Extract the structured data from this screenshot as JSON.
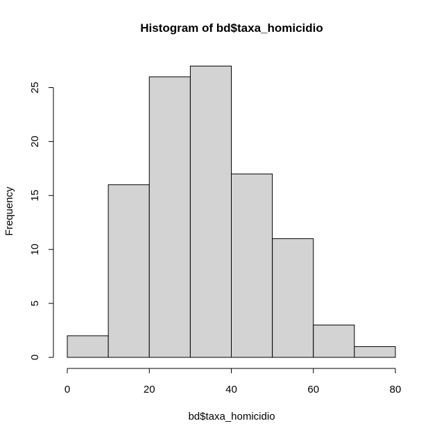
{
  "chart_data": {
    "type": "bar",
    "title": "Histogram of bd$taxa_homicidio",
    "xlabel": "bd$taxa_homicidio",
    "ylabel": "Frequency",
    "bins": [
      {
        "from": 0,
        "to": 10,
        "count": 2
      },
      {
        "from": 10,
        "to": 20,
        "count": 16
      },
      {
        "from": 20,
        "to": 30,
        "count": 26
      },
      {
        "from": 30,
        "to": 40,
        "count": 27
      },
      {
        "from": 40,
        "to": 50,
        "count": 17
      },
      {
        "from": 50,
        "to": 60,
        "count": 11
      },
      {
        "from": 60,
        "to": 70,
        "count": 3
      },
      {
        "from": 70,
        "to": 80,
        "count": 1
      }
    ],
    "xlim": [
      0,
      80
    ],
    "ylim": [
      0,
      25
    ],
    "x_ticks": [
      "0",
      "20",
      "40",
      "60",
      "80"
    ],
    "y_ticks": [
      "0",
      "5",
      "10",
      "15",
      "20",
      "25"
    ],
    "bar_fill": "#d3d3d3",
    "bar_stroke": "#000000",
    "grid": false
  }
}
